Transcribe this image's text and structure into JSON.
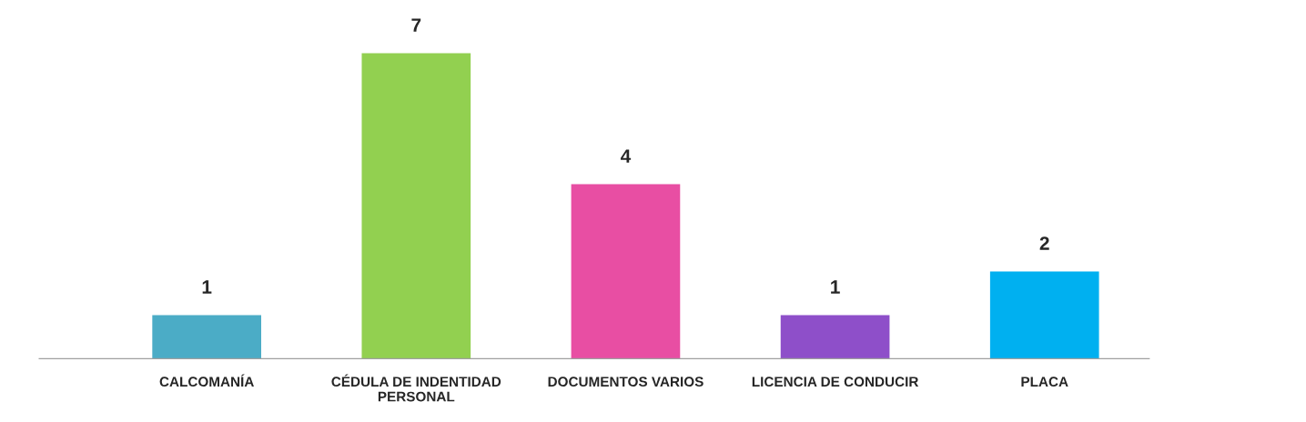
{
  "chart_data": {
    "type": "bar",
    "categories": [
      "CALCOMANÍA",
      "CÉDULA DE INDENTIDAD\nPERSONAL",
      "DOCUMENTOS VARIOS",
      "LICENCIA DE CONDUCIR",
      "PLACA"
    ],
    "values": [
      1,
      7,
      4,
      1,
      2
    ],
    "colors": [
      "#4bacc6",
      "#92d050",
      "#e84ea3",
      "#8e4fc9",
      "#00b0f0"
    ],
    "data_labels": true,
    "grid": false,
    "legend": false
  }
}
